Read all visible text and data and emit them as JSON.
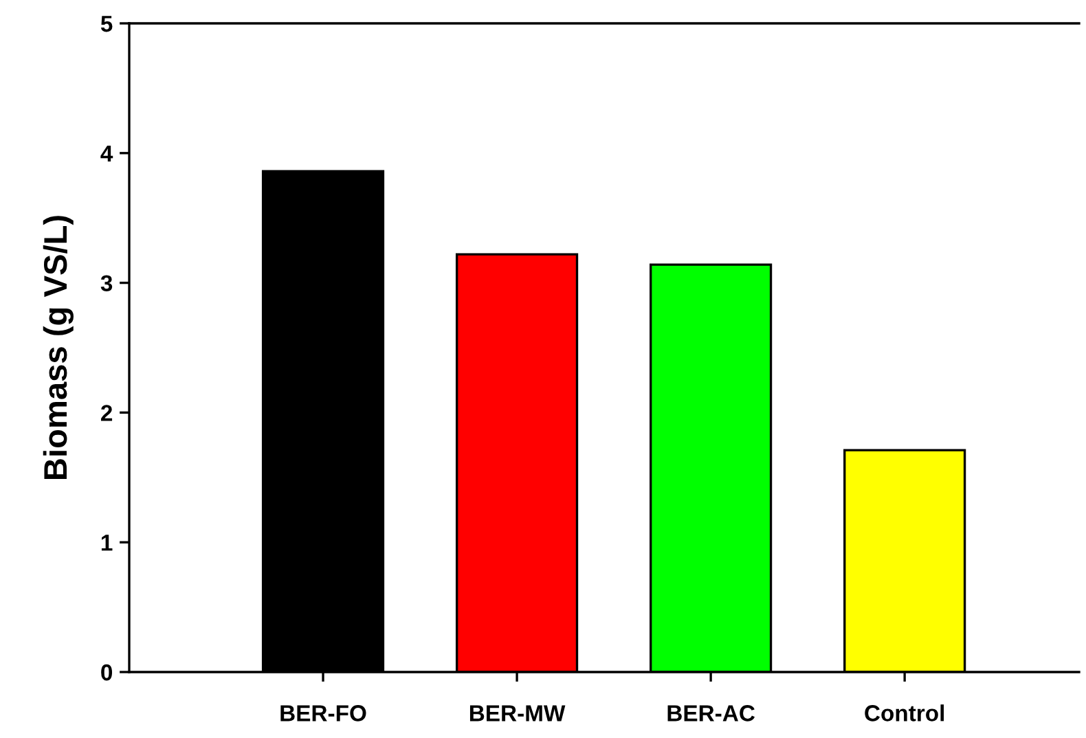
{
  "chart_data": {
    "type": "bar",
    "ylabel": "Biomass (g VS/L)",
    "categories": [
      "BER-FO",
      "BER-MW",
      "BER-AC",
      "Control"
    ],
    "values": [
      3.86,
      3.22,
      3.14,
      1.71
    ],
    "colors": [
      "#000000",
      "#ff0000",
      "#00ff00",
      "#ffff00"
    ],
    "ylim": [
      0,
      5
    ],
    "yticks": [
      0,
      1,
      2,
      3,
      4,
      5
    ],
    "grid": false,
    "legend": false
  }
}
